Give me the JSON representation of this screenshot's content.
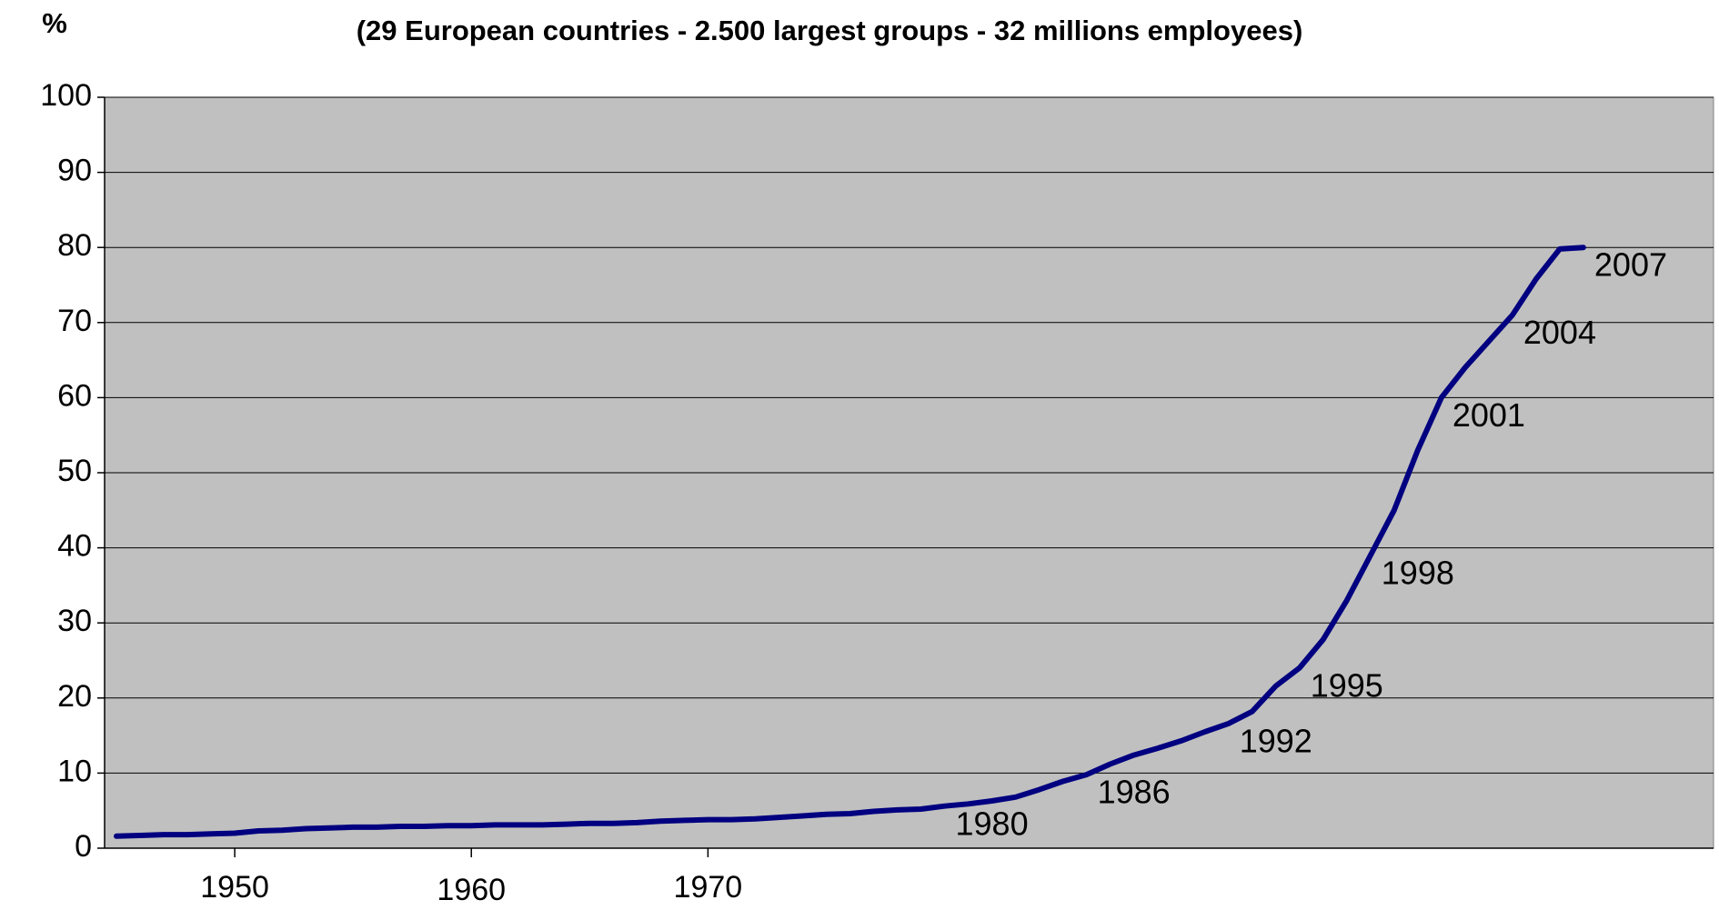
{
  "chart_data": {
    "type": "line",
    "y_label": "%",
    "title": "(29 European countries - 2.500 largest groups - 32 millions employees)",
    "x": [
      1945,
      1946,
      1947,
      1948,
      1949,
      1950,
      1951,
      1952,
      1953,
      1954,
      1955,
      1956,
      1957,
      1958,
      1959,
      1960,
      1961,
      1962,
      1963,
      1964,
      1965,
      1966,
      1967,
      1968,
      1969,
      1970,
      1971,
      1972,
      1973,
      1974,
      1975,
      1976,
      1977,
      1978,
      1979,
      1980,
      1981,
      1982,
      1983,
      1984,
      1985,
      1986,
      1987,
      1988,
      1989,
      1990,
      1991,
      1992,
      1993,
      1994,
      1995,
      1996,
      1997,
      1998,
      1999,
      2000,
      2001,
      2002,
      2003,
      2004,
      2005,
      2006,
      2007
    ],
    "series": [
      {
        "color": "#000080",
        "values": [
          1.6,
          1.7,
          1.8,
          1.8,
          1.9,
          2.0,
          2.3,
          2.4,
          2.6,
          2.7,
          2.8,
          2.8,
          2.9,
          2.9,
          3.0,
          3.0,
          3.1,
          3.1,
          3.1,
          3.2,
          3.3,
          3.3,
          3.4,
          3.6,
          3.7,
          3.8,
          3.8,
          3.9,
          4.1,
          4.3,
          4.5,
          4.6,
          4.9,
          5.1,
          5.2,
          5.6,
          5.9,
          6.3,
          6.8,
          7.8,
          8.9,
          9.8,
          11.2,
          12.4,
          13.3,
          14.3,
          15.5,
          16.6,
          18.2,
          21.6,
          24.0,
          27.8,
          33.0,
          39.0,
          45.0,
          53.0,
          60.0,
          64.0,
          67.5,
          71.0,
          75.8,
          79.8,
          80.0
        ]
      }
    ],
    "annotations": [
      {
        "x": 1980,
        "label": "1980"
      },
      {
        "x": 1986,
        "label": "1986"
      },
      {
        "x": 1992,
        "label": "1992"
      },
      {
        "x": 1995,
        "label": "1995"
      },
      {
        "x": 1998,
        "label": "1998"
      },
      {
        "x": 2001,
        "label": "2001"
      },
      {
        "x": 2004,
        "label": "2004"
      },
      {
        "x": 2007,
        "label": "2007"
      }
    ],
    "xlim": [
      1944.5,
      2012.5
    ],
    "xticks": [
      1950,
      1960,
      1970
    ],
    "ylim": [
      0,
      100
    ],
    "yticks": [
      0,
      10,
      20,
      30,
      40,
      50,
      60,
      70,
      80,
      90,
      100
    ],
    "grid": true,
    "plot_background": "#c0c0c0"
  }
}
